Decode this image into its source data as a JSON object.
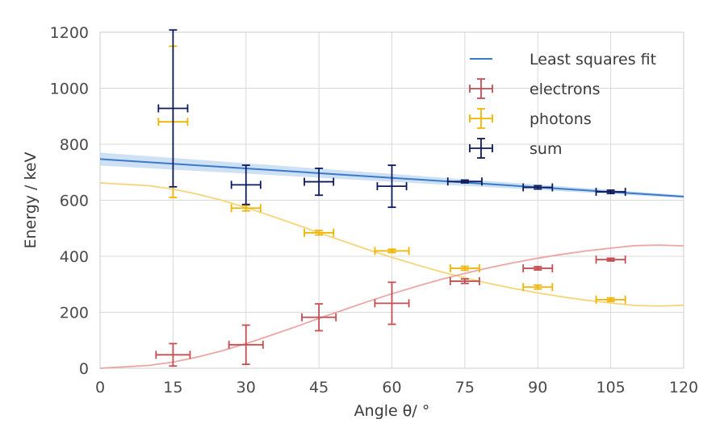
{
  "chart_data": {
    "type": "scatter",
    "title": "",
    "xlabel": "Angle θ/ °",
    "ylabel": "Energy / keV",
    "xlim": [
      0,
      120
    ],
    "ylim": [
      0,
      1200
    ],
    "xticks": [
      0,
      15,
      30,
      45,
      60,
      75,
      90,
      105,
      120
    ],
    "yticks": [
      0,
      200,
      400,
      600,
      800,
      1000,
      1200
    ],
    "grid": true,
    "legend": "top-right",
    "fit": {
      "name": "Least squares fit",
      "color": "#3a7ac8",
      "x": [
        0,
        120
      ],
      "y": [
        747,
        613
      ],
      "band_upper": [
        770,
        618
      ],
      "band_lower": [
        724,
        608
      ]
    },
    "theory_curves": [
      {
        "color": "#f6d57a",
        "x": [
          0,
          10,
          15,
          20,
          25,
          30,
          35,
          40,
          45,
          50,
          55,
          60,
          65,
          70,
          75,
          80,
          85,
          90,
          95,
          100,
          105,
          110,
          115,
          120
        ],
        "y": [
          662,
          652,
          640,
          622,
          600,
          574,
          545,
          515,
          484,
          454,
          424,
          396,
          370,
          345,
          323,
          303,
          285,
          269,
          255,
          243,
          233,
          224,
          222,
          225
        ]
      },
      {
        "color": "#eda5a3",
        "x": [
          0,
          10,
          15,
          20,
          25,
          30,
          35,
          40,
          45,
          50,
          55,
          60,
          65,
          70,
          75,
          80,
          85,
          90,
          95,
          100,
          105,
          110,
          115,
          120
        ],
        "y": [
          0,
          10,
          22,
          40,
          62,
          88,
          117,
          147,
          178,
          208,
          238,
          266,
          292,
          317,
          339,
          359,
          377,
          393,
          407,
          419,
          429,
          438,
          440,
          437
        ]
      }
    ],
    "series": [
      {
        "name": "electrons",
        "color": "#c44e52",
        "points": [
          {
            "x": 15,
            "y": 48,
            "xerr": 3.5,
            "yerr": 40
          },
          {
            "x": 30,
            "y": 84,
            "xerr": 3.5,
            "yerr": 70
          },
          {
            "x": 45,
            "y": 182,
            "xerr": 3.5,
            "yerr": 48
          },
          {
            "x": 60,
            "y": 232,
            "xerr": 3.5,
            "yerr": 75
          },
          {
            "x": 75,
            "y": 311,
            "xerr": 3,
            "yerr": 8
          },
          {
            "x": 90,
            "y": 357,
            "xerr": 3,
            "yerr": 6
          },
          {
            "x": 105,
            "y": 388,
            "xerr": 3,
            "yerr": 5
          }
        ]
      },
      {
        "name": "photons",
        "color": "#f0b400",
        "points": [
          {
            "x": 15,
            "y": 880,
            "xerr": 3,
            "yerr": 270
          },
          {
            "x": 30,
            "y": 572,
            "xerr": 3,
            "yerr": 10
          },
          {
            "x": 45,
            "y": 484,
            "xerr": 3,
            "yerr": 8
          },
          {
            "x": 60,
            "y": 419,
            "xerr": 3.5,
            "yerr": 6
          },
          {
            "x": 75,
            "y": 357,
            "xerr": 3,
            "yerr": 7
          },
          {
            "x": 90,
            "y": 290,
            "xerr": 3,
            "yerr": 7
          },
          {
            "x": 105,
            "y": 245,
            "xerr": 3,
            "yerr": 6
          }
        ]
      },
      {
        "name": "sum",
        "color": "#0d1a5c",
        "points": [
          {
            "x": 15,
            "y": 928,
            "xerr": 3,
            "yerr": 280
          },
          {
            "x": 30,
            "y": 655,
            "xerr": 3,
            "yerr": 70
          },
          {
            "x": 45,
            "y": 666,
            "xerr": 3,
            "yerr": 48
          },
          {
            "x": 60,
            "y": 650,
            "xerr": 3,
            "yerr": 75
          },
          {
            "x": 75,
            "y": 667,
            "xerr": 3.5,
            "yerr": 5
          },
          {
            "x": 90,
            "y": 646,
            "xerr": 3,
            "yerr": 6
          },
          {
            "x": 105,
            "y": 630,
            "xerr": 3,
            "yerr": 6
          }
        ]
      }
    ]
  }
}
